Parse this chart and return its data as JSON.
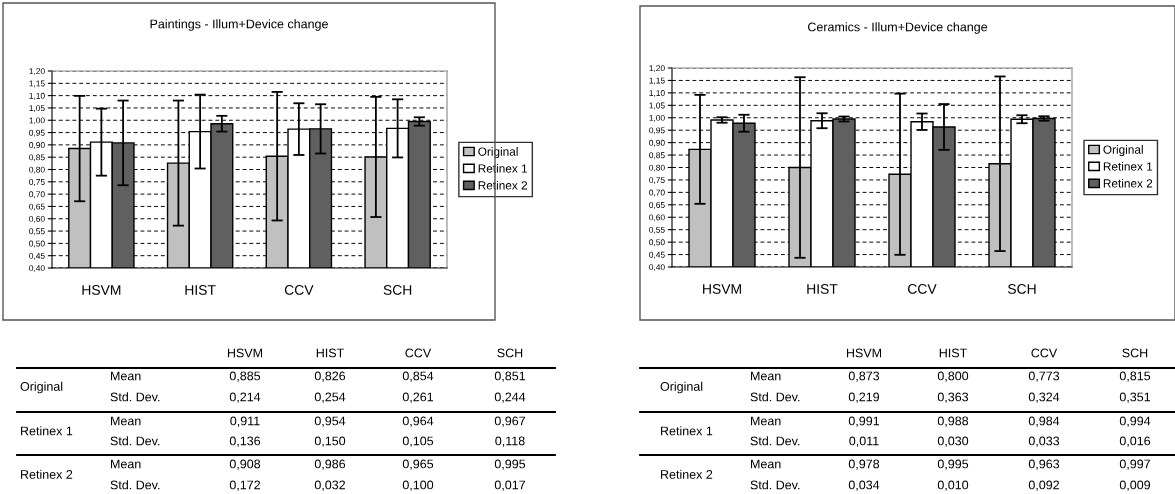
{
  "chart_data": [
    {
      "type": "bar",
      "title": "Paintings - Illum+Device change",
      "categories": [
        "HSVM",
        "HIST",
        "CCV",
        "SCH"
      ],
      "series": [
        {
          "name": "Original",
          "color": "#c0c0c0",
          "values": [
            0.885,
            0.826,
            0.854,
            0.851
          ],
          "errors": [
            0.214,
            0.254,
            0.261,
            0.244
          ]
        },
        {
          "name": "Retinex 1",
          "color": "#ffffff",
          "values": [
            0.911,
            0.954,
            0.964,
            0.967
          ],
          "errors": [
            0.136,
            0.15,
            0.105,
            0.118
          ]
        },
        {
          "name": "Retinex 2",
          "color": "#606060",
          "values": [
            0.908,
            0.986,
            0.965,
            0.995
          ],
          "errors": [
            0.172,
            0.032,
            0.1,
            0.017
          ]
        }
      ],
      "ylim": [
        0.4,
        1.2
      ],
      "yticks": [
        {
          "value": 0.4,
          "label": "0,40"
        },
        {
          "value": 0.45,
          "label": "0,45"
        },
        {
          "value": 0.5,
          "label": "0,50"
        },
        {
          "value": 0.55,
          "label": "0,55"
        },
        {
          "value": 0.6,
          "label": "0,60"
        },
        {
          "value": 0.65,
          "label": "0,65"
        },
        {
          "value": 0.7,
          "label": "0,70"
        },
        {
          "value": 0.75,
          "label": "0,75"
        },
        {
          "value": 0.8,
          "label": "0,80"
        },
        {
          "value": 0.85,
          "label": "0,85"
        },
        {
          "value": 0.9,
          "label": "0,90"
        },
        {
          "value": 0.95,
          "label": "0,95"
        },
        {
          "value": 1.0,
          "label": "1,00"
        },
        {
          "value": 1.05,
          "label": "1,05"
        },
        {
          "value": 1.1,
          "label": "1,10"
        },
        {
          "value": 1.15,
          "label": "1,15"
        },
        {
          "value": 1.2,
          "label": "1,20"
        }
      ],
      "grid": "y",
      "legend": "right",
      "annotations": [
        "Mean",
        "Std. Dev.",
        "0,885",
        "0,826",
        "0,854",
        "0,851",
        "0,214",
        "0,254",
        "0,261",
        "0,244",
        "0,911",
        "0,954",
        "0,964",
        "0,967",
        "0,136",
        "0,150",
        "0,105",
        "0,118",
        "0,908",
        "0,986",
        "0,965",
        "0,995",
        "0,172",
        "0,032",
        "0,100",
        "0,017"
      ]
    },
    {
      "type": "bar",
      "title": "Ceramics - Illum+Device change",
      "categories": [
        "HSVM",
        "HIST",
        "CCV",
        "SCH"
      ],
      "series": [
        {
          "name": "Original",
          "color": "#c0c0c0",
          "values": [
            0.873,
            0.8,
            0.773,
            0.815
          ],
          "errors": [
            0.219,
            0.363,
            0.324,
            0.351
          ]
        },
        {
          "name": "Retinex 1",
          "color": "#ffffff",
          "values": [
            0.991,
            0.988,
            0.984,
            0.994
          ],
          "errors": [
            0.011,
            0.03,
            0.033,
            0.016
          ]
        },
        {
          "name": "Retinex 2",
          "color": "#606060",
          "values": [
            0.978,
            0.995,
            0.963,
            0.997
          ],
          "errors": [
            0.034,
            0.01,
            0.092,
            0.009
          ]
        }
      ],
      "ylim": [
        0.4,
        1.2
      ],
      "yticks": [
        {
          "value": 0.4,
          "label": "0,40"
        },
        {
          "value": 0.45,
          "label": "0,45"
        },
        {
          "value": 0.5,
          "label": "0,50"
        },
        {
          "value": 0.55,
          "label": "0,55"
        },
        {
          "value": 0.6,
          "label": "0,60"
        },
        {
          "value": 0.65,
          "label": "0,65"
        },
        {
          "value": 0.7,
          "label": "0,70"
        },
        {
          "value": 0.75,
          "label": "0,75"
        },
        {
          "value": 0.8,
          "label": "0,80"
        },
        {
          "value": 0.85,
          "label": "0,85"
        },
        {
          "value": 0.9,
          "label": "0,90"
        },
        {
          "value": 0.95,
          "label": "0,95"
        },
        {
          "value": 1.0,
          "label": "1,00"
        },
        {
          "value": 1.05,
          "label": "1,05"
        },
        {
          "value": 1.1,
          "label": "1,10"
        },
        {
          "value": 1.15,
          "label": "1,15"
        },
        {
          "value": 1.2,
          "label": "1,20"
        }
      ],
      "grid": "y",
      "legend": "right",
      "annotations": [
        "Mean",
        "Std. Dev.",
        "0,873",
        "0,800",
        "0,773",
        "0,815",
        "0,219",
        "0,363",
        "0,324",
        "0,351",
        "0,991",
        "0,988",
        "0,984",
        "0,994",
        "0,011",
        "0,030",
        "0,033",
        "0,016",
        "0,978",
        "0,995",
        "0,963",
        "0,997",
        "0,034",
        "0,010",
        "0,092",
        "0,009"
      ]
    }
  ]
}
